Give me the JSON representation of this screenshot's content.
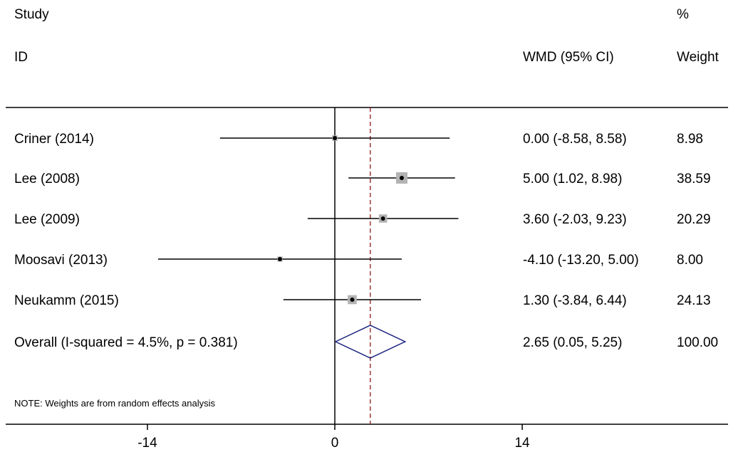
{
  "chart_data": {
    "type": "forest",
    "headers": {
      "study_top": "Study",
      "study_bottom": "ID",
      "ci": "WMD (95% CI)",
      "weight_top": "%",
      "weight_bottom": "Weight"
    },
    "studies": [
      {
        "label": "Criner (2014)",
        "est": 0.0,
        "lo": -8.58,
        "hi": 8.58,
        "ci_text": "0.00 (-8.58, 8.58)",
        "weight": "8.98",
        "w": 8.98
      },
      {
        "label": "Lee (2008)",
        "est": 5.0,
        "lo": 1.02,
        "hi": 8.98,
        "ci_text": "5.00 (1.02, 8.98)",
        "weight": "38.59",
        "w": 38.59
      },
      {
        "label": "Lee (2009)",
        "est": 3.6,
        "lo": -2.03,
        "hi": 9.23,
        "ci_text": "3.60 (-2.03, 9.23)",
        "weight": "20.29",
        "w": 20.29
      },
      {
        "label": "Moosavi (2013)",
        "est": -4.1,
        "lo": -13.2,
        "hi": 5.0,
        "ci_text": "-4.10 (-13.20, 5.00)",
        "weight": "8.00",
        "w": 8.0
      },
      {
        "label": "Neukamm (2015)",
        "est": 1.3,
        "lo": -3.84,
        "hi": 6.44,
        "ci_text": "1.30 (-3.84, 6.44)",
        "weight": "24.13",
        "w": 24.13
      }
    ],
    "overall": {
      "label": "Overall  (I-squared = 4.5%, p = 0.381)",
      "est": 2.65,
      "lo": 0.05,
      "hi": 5.25,
      "ci_text": "2.65 (0.05, 5.25)",
      "weight": "100.00"
    },
    "note": "NOTE: Weights are from random effects analysis",
    "x_ticks": [
      -14,
      0,
      14
    ],
    "x_tick_labels": [
      "-14",
      "0",
      "14"
    ],
    "null_line": 0,
    "colors": {
      "axis": "#000000",
      "ci_line": "#000000",
      "box": "#b3b3b3",
      "diamond": "#1a237e",
      "overall_line": "#8b1a1a"
    }
  }
}
